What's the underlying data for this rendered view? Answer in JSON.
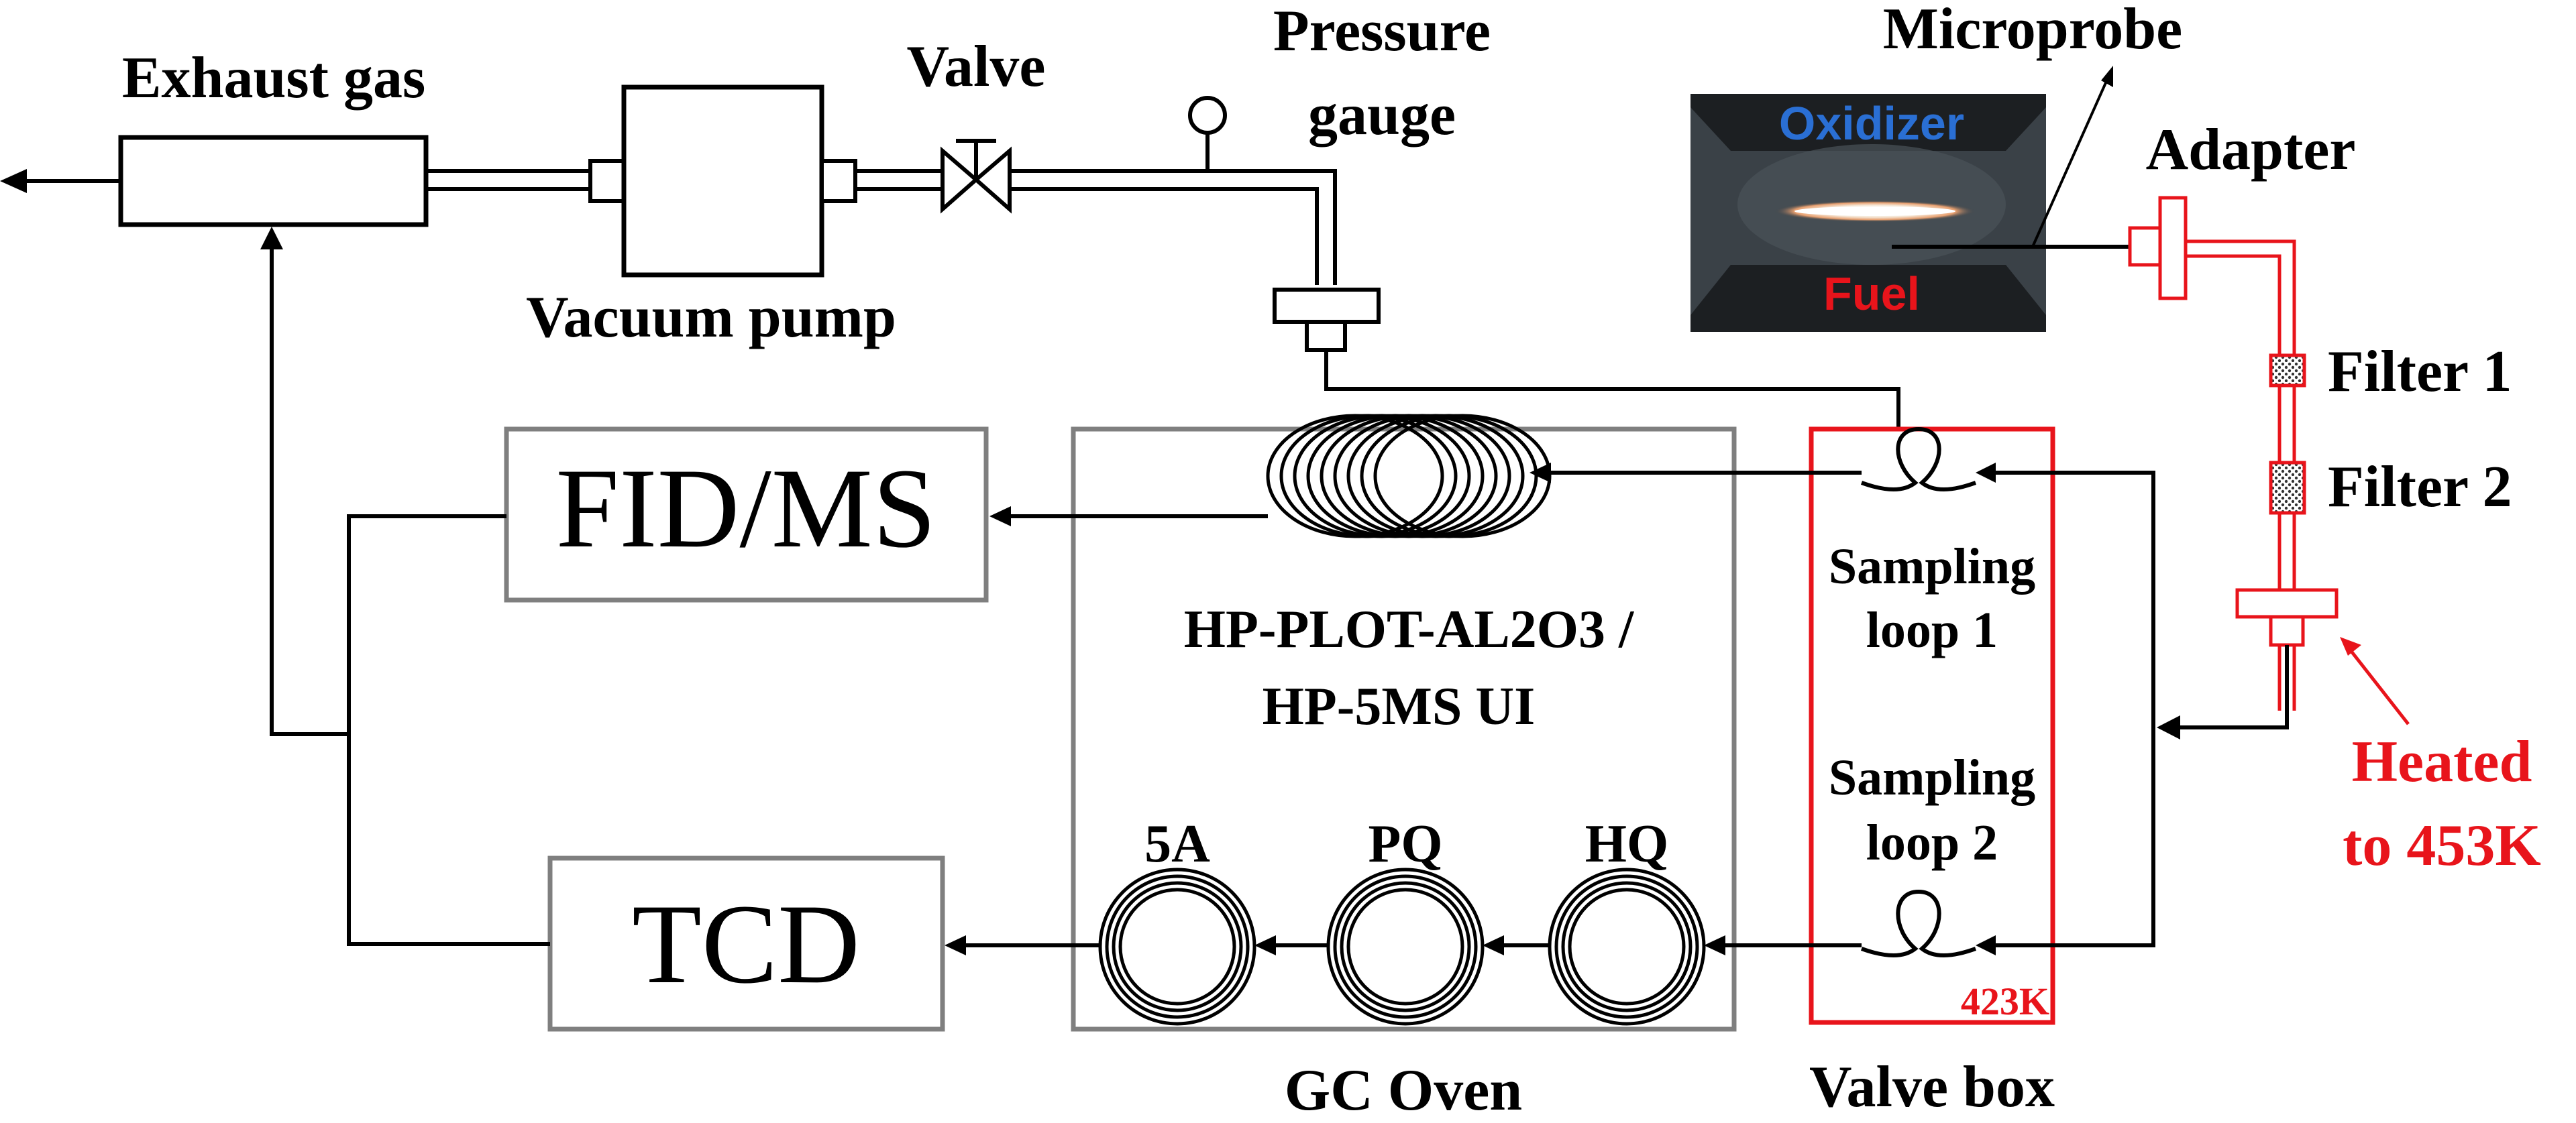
{
  "colors": {
    "line": "#000000",
    "box_gray": "#7f7f7f",
    "heated": "#e8141b",
    "oxidizer_text": "#2a6fd4",
    "fuel_text": "#e8141b",
    "photo_bg": "#3a4147"
  },
  "labels": {
    "exhaust_gas": "Exhaust gas",
    "valve": "Valve",
    "pressure": "Pressure",
    "gauge": "gauge",
    "microprobe": "Microprobe",
    "adapter": "Adapter",
    "vacuum_pump": "Vacuum pump",
    "filter1": "Filter 1",
    "filter2": "Filter 2",
    "heated_line1": "Heated",
    "heated_line2": "to 453K",
    "sampling_loop1_a": "Sampling",
    "sampling_loop1_b": "loop 1",
    "sampling_loop2_a": "Sampling",
    "sampling_loop2_b": "loop 2",
    "valve_box_temp": "423K",
    "column_line1": "HP-PLOT-AL2O3 /",
    "column_line2": "HP-5MS UI",
    "col_5a": "5A",
    "col_pq": "PQ",
    "col_hq": "HQ",
    "gc_oven": "GC Oven",
    "valve_box": "Valve box"
  },
  "detectors": {
    "fid_ms": "FID/MS",
    "tcd": "TCD"
  },
  "photo": {
    "oxidizer": "Oxidizer",
    "fuel": "Fuel"
  }
}
